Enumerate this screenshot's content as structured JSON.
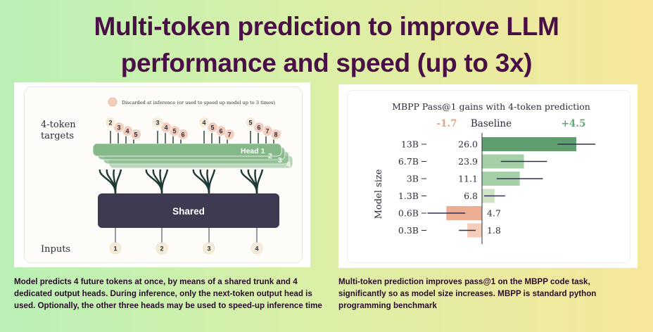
{
  "title": {
    "line1": "Multi-token prediction to improve LLM",
    "line2": "performance and speed (up to 3x)"
  },
  "diagram": {
    "legend": "Discarded at inference (or used to speed up model up to 3 times)",
    "targets_label_1": "4-token",
    "targets_label_2": "targets",
    "inputs_label": "Inputs",
    "shared_label": "Shared",
    "head_label": "Head 1",
    "head_numbers": [
      "2",
      "3",
      "4"
    ],
    "inputs": [
      "1",
      "2",
      "3",
      "4"
    ],
    "target_groups": [
      [
        "2",
        "3",
        "4",
        "5"
      ],
      [
        "3",
        "4",
        "5",
        "6"
      ],
      [
        "4",
        "5",
        "6",
        "7"
      ],
      [
        "5",
        "6",
        "7",
        "8"
      ]
    ],
    "colors": {
      "head": "#86b98a",
      "shared": "#3d3a52",
      "branch": "#1f3a34",
      "token_kept": "#f6ecd8",
      "token_discarded": "#f3cdbd"
    }
  },
  "chart_data": {
    "type": "bar",
    "title": "MBPP Pass@1  gains with 4-token prediction",
    "ylabel": "Model size",
    "left_annotation": "-1.7",
    "center_annotation": "Baseline",
    "right_annotation": "+4.5",
    "categories": [
      "13B",
      "6.7B",
      "3B",
      "1.3B",
      "0.6B",
      "0.3B"
    ],
    "gains": [
      4.5,
      2.0,
      1.8,
      0.6,
      -1.7,
      -0.7
    ],
    "value_labels": [
      "26.0",
      "23.9",
      "11.1",
      "6.8",
      "4.7",
      "1.8"
    ],
    "error_half_width": [
      0.9,
      1.1,
      1.1,
      0.5,
      0.9,
      0.4
    ],
    "colors": {
      "positive_strong": "#5f9e6e",
      "positive": "#a5cfa6",
      "positive_light": "#cfe3c7",
      "negative": "#ecad93",
      "negative_light": "#f5cdb8",
      "left_annotation": "#e7a281",
      "right_annotation": "#63a978"
    }
  },
  "captions": {
    "left": "Model predicts 4 future tokens at once, by means of a shared trunk and 4 dedicated output heads. During inference, only the next-token output head is used. Optionally, the other three heads may be used to speed-up inference time",
    "right": "Multi-token prediction improves pass@1 on the MBPP code task, significantly so as model size increases. MBPP is standard python programming benchmark"
  }
}
